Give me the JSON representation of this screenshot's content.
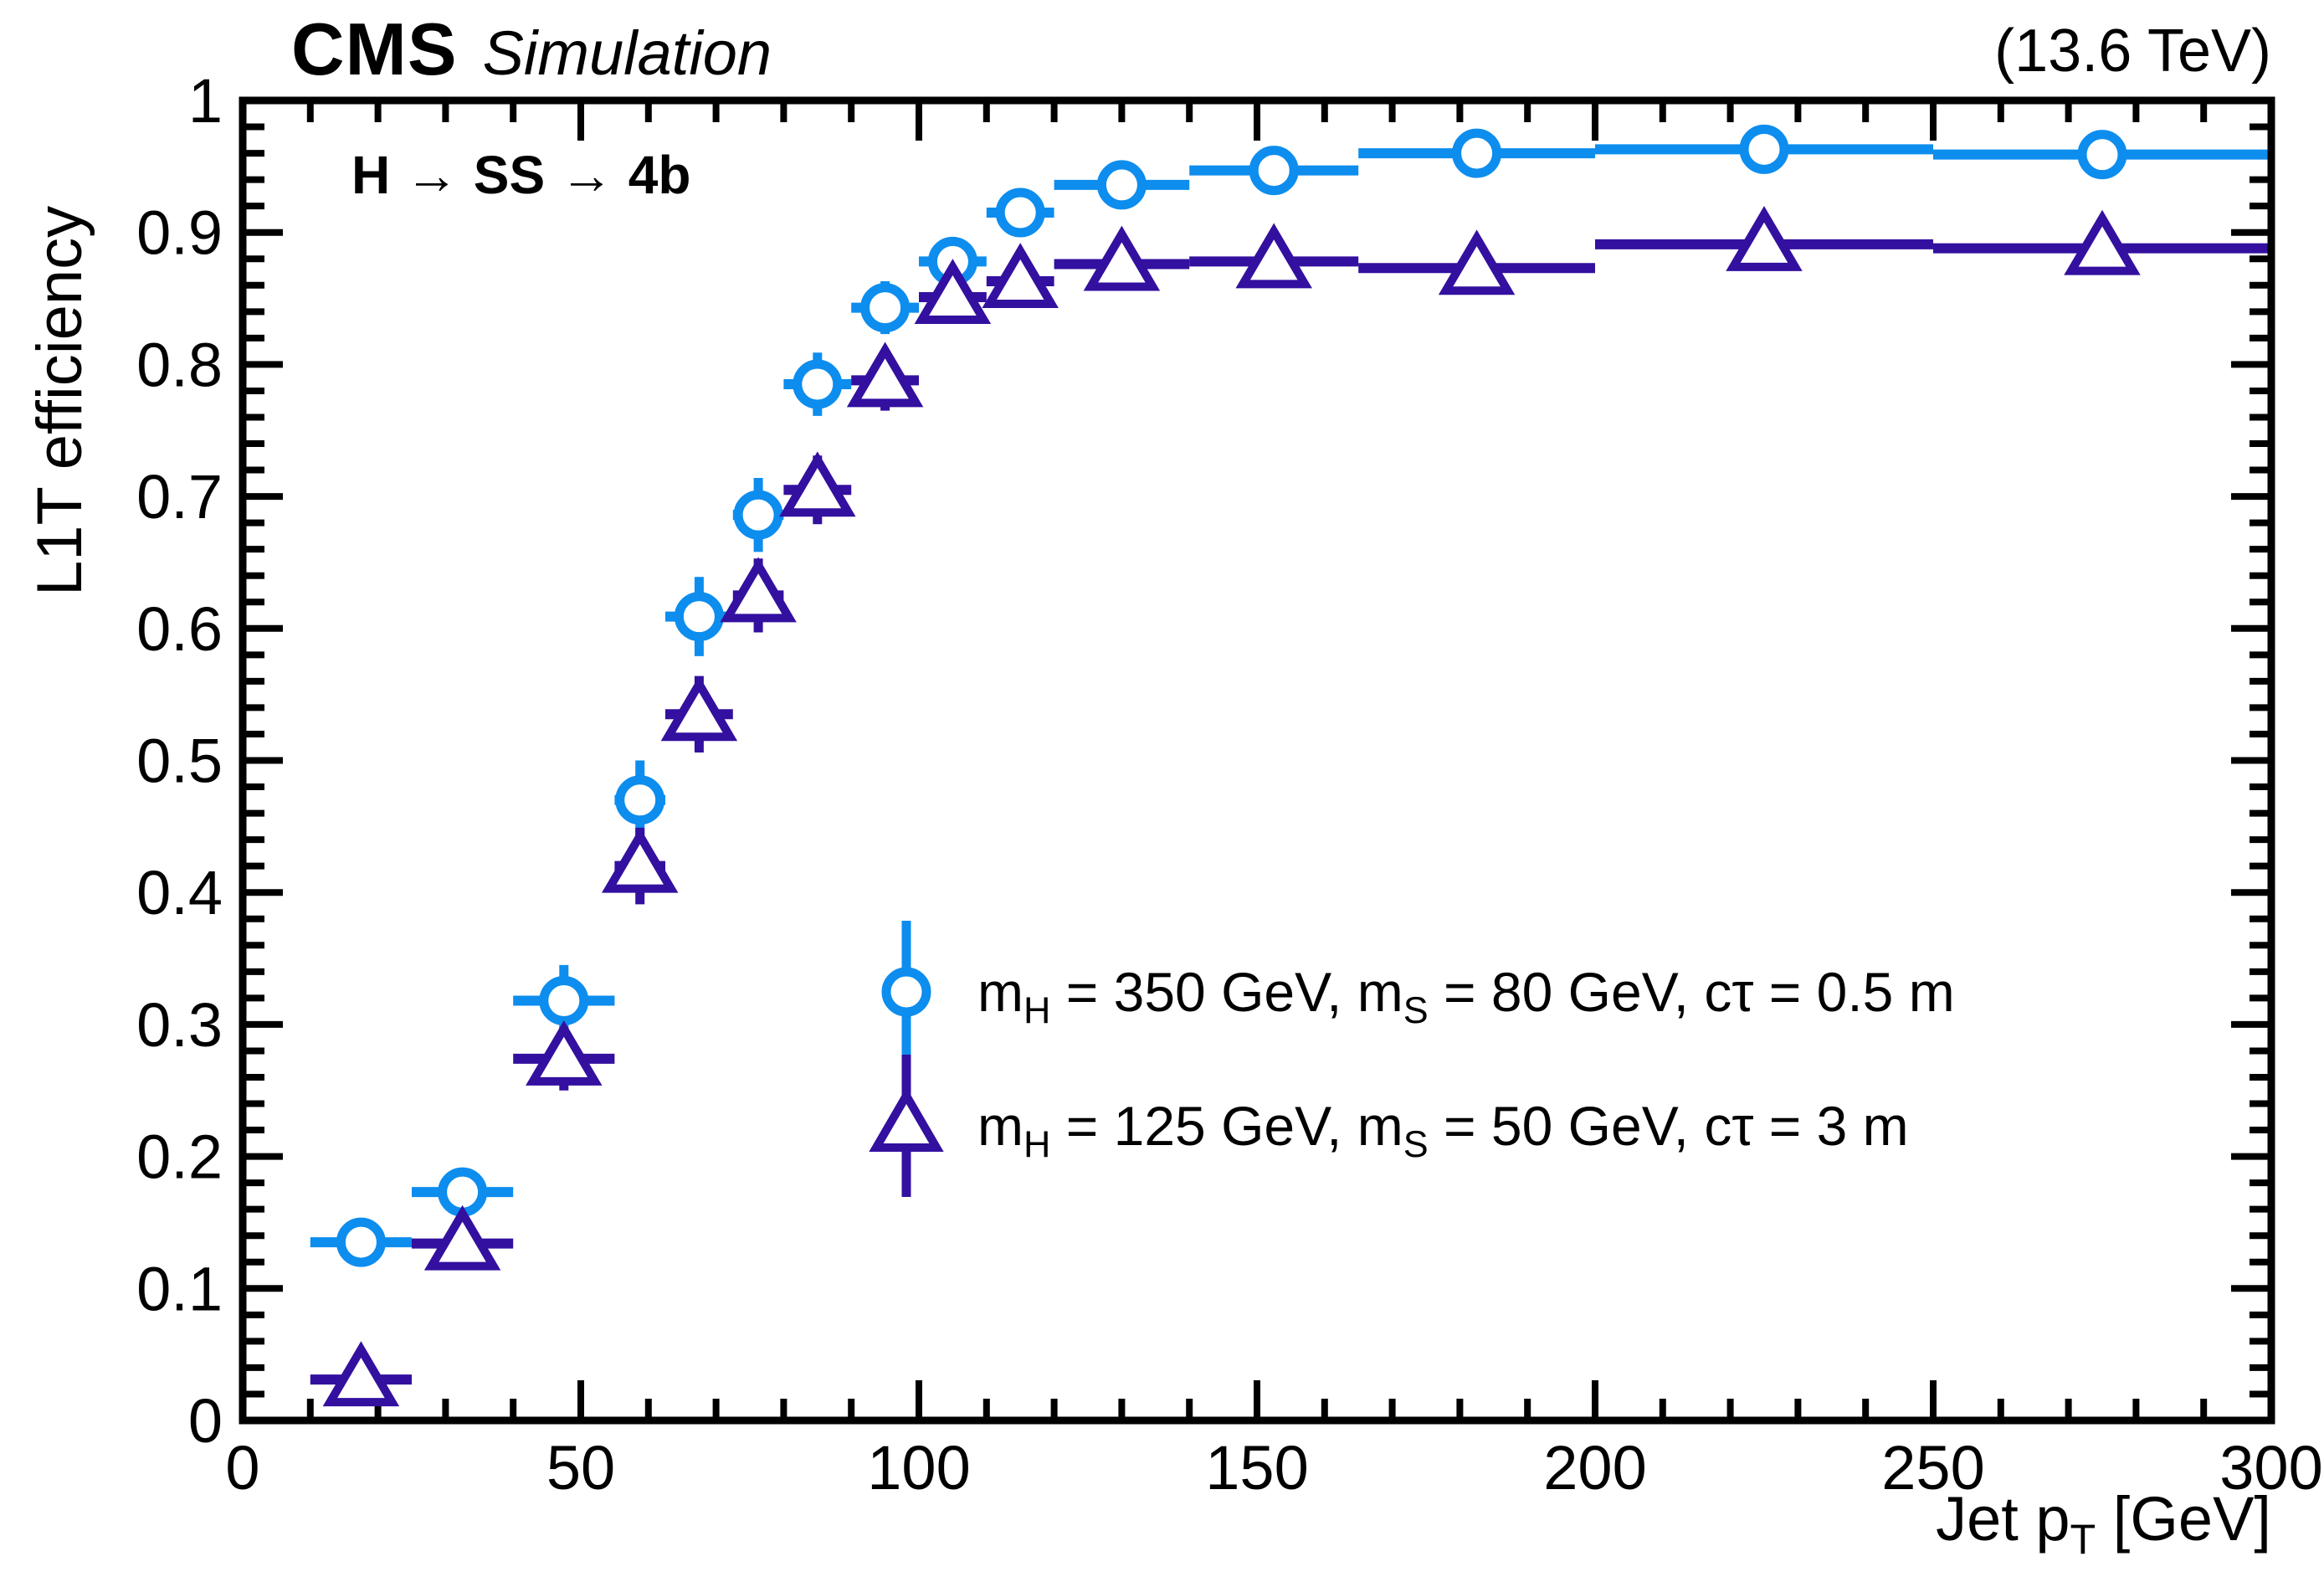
{
  "header": {
    "experiment": "CMS",
    "label": "Simulation",
    "energy": "(13.6 TeV)"
  },
  "plot_label": "H → SS → 4b",
  "axes": {
    "x": {
      "title_main": "Jet p",
      "title_sub": "T",
      "title_unit": " [GeV]",
      "min": 0,
      "max": 300,
      "major_step": 50,
      "minor_step": 10,
      "tick_labels": [
        "0",
        "50",
        "100",
        "150",
        "200",
        "250",
        "300"
      ]
    },
    "y": {
      "title": "L1T efficiency",
      "min": 0,
      "max": 1,
      "major_step": 0.1,
      "minor_step": 0.02,
      "tick_labels": [
        "0",
        "0.1",
        "0.2",
        "0.3",
        "0.4",
        "0.5",
        "0.6",
        "0.7",
        "0.8",
        "0.9",
        "1"
      ]
    }
  },
  "legend": {
    "entries": [
      {
        "marker": "circle",
        "seg0": "m",
        "sub0": "H",
        "seg1": " = 350 GeV, m",
        "sub1": "S",
        "seg2": " = 80 GeV, cτ = 0.5 m"
      },
      {
        "marker": "triangle",
        "seg0": "m",
        "sub0": "H",
        "seg1": " = 125 GeV, m",
        "sub1": "S",
        "seg2": " = 50 GeV, cτ = 3 m"
      }
    ]
  },
  "chart_data": {
    "type": "scatter",
    "title": "CMS Simulation (13.6 TeV) — H → SS → 4b — L1T efficiency vs Jet pT",
    "xlabel": "Jet pT [GeV]",
    "ylabel": "L1T efficiency",
    "xlim": [
      0,
      300
    ],
    "ylim": [
      0,
      1
    ],
    "grid": false,
    "legend_position": "center-right",
    "bin_edges": [
      10,
      25,
      40,
      55,
      62.5,
      72.5,
      80,
      90,
      100,
      110,
      120,
      140,
      165,
      200,
      250,
      300
    ],
    "bin_centers": [
      17.5,
      32.5,
      47.5,
      58.75,
      67.5,
      76.25,
      85,
      95,
      105,
      115,
      130,
      152.5,
      182.5,
      225,
      275
    ],
    "series": [
      {
        "name": "mH = 350 GeV, mS = 80 GeV, ctau = 0.5 m",
        "marker": "circle",
        "color": "#0D8DEE",
        "values": [
          0.135,
          0.173,
          0.318,
          0.47,
          0.609,
          0.686,
          0.785,
          0.843,
          0.878,
          0.915,
          0.936,
          0.947,
          0.96,
          0.963,
          0.959
        ],
        "yerr": [
          0.012,
          0.013,
          0.027,
          0.03,
          0.03,
          0.028,
          0.024,
          0.02,
          0.017,
          0.015,
          0.011,
          0.011,
          0.009,
          0.008,
          0.009
        ]
      },
      {
        "name": "mH = 125 GeV, mS = 50 GeV, ctau = 3 m",
        "marker": "triangle",
        "color": "#33109F",
        "values": [
          0.031,
          0.134,
          0.274,
          0.42,
          0.535,
          0.625,
          0.705,
          0.788,
          0.851,
          0.863,
          0.876,
          0.878,
          0.873,
          0.891,
          0.888
        ],
        "yerr": [
          0.007,
          0.013,
          0.024,
          0.029,
          0.029,
          0.028,
          0.026,
          0.023,
          0.02,
          0.019,
          0.014,
          0.013,
          0.012,
          0.01,
          0.011
        ]
      }
    ]
  },
  "colors": {
    "frame": "#000000",
    "background": "#ffffff"
  }
}
